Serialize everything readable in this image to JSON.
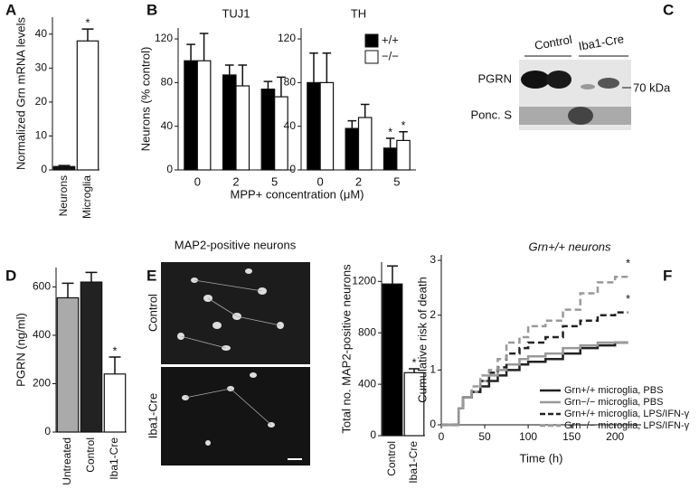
{
  "chart_data": [
    {
      "type": "bar",
      "label": "A",
      "ylabel": "Normalized Grn mRNA levels",
      "categories": [
        "Neurons",
        "Microglia"
      ],
      "values": [
        1,
        38
      ],
      "errors": [
        0.3,
        3.5
      ],
      "colors": [
        "#111111",
        "#ffffff"
      ],
      "significance": [
        null,
        "*"
      ],
      "ylim": [
        0,
        45
      ],
      "yticks": [
        0,
        10,
        20,
        30,
        40
      ]
    },
    {
      "type": "grouped-bar",
      "label": "B",
      "ylabel": "Neurons (% control)",
      "xlabel": "MPP+ concentration (μM)",
      "categories": [
        "0",
        "2",
        "5"
      ],
      "series": [
        {
          "name": "+/+",
          "color": "#000000"
        },
        {
          "name": "−/−",
          "color": "#ffffff"
        }
      ],
      "ylim": [
        0,
        130
      ],
      "yticks": [
        0,
        40,
        80,
        120
      ],
      "panels": [
        {
          "title": "TUJ1",
          "values": [
            [
              100,
              87,
              74
            ],
            [
              100,
              77,
              67
            ]
          ],
          "errors": [
            [
              15,
              9,
              7
            ],
            [
              25,
              19,
              18
            ]
          ]
        },
        {
          "title": "TH",
          "values": [
            [
              80,
              38,
              20
            ],
            [
              80,
              48,
              27
            ]
          ],
          "errors": [
            [
              27,
              7,
              9
            ],
            [
              27,
              12,
              8
            ]
          ],
          "significance": [
            [
              null,
              null,
              "*"
            ],
            [
              null,
              null,
              "*"
            ]
          ]
        }
      ]
    },
    {
      "type": "bar",
      "label": "D",
      "ylabel": "PGRN (ng/ml)",
      "categories": [
        "Untreated",
        "Control",
        "Iba1-Cre"
      ],
      "values": [
        555,
        620,
        240
      ],
      "errors": [
        60,
        40,
        70
      ],
      "colors": [
        "#aaaaaa",
        "#222222",
        "#ffffff"
      ],
      "significance": [
        null,
        null,
        "*"
      ],
      "ylim": [
        0,
        680
      ],
      "yticks": [
        0,
        200,
        400,
        600
      ]
    },
    {
      "type": "bar",
      "label": "E",
      "ylabel": "Total no. MAP2-positive neurons",
      "categories": [
        "Control",
        "Iba1-Cre"
      ],
      "values": [
        1180,
        490
      ],
      "errors": [
        140,
        30
      ],
      "colors": [
        "#000000",
        "#ffffff"
      ],
      "significance": [
        null,
        "*"
      ],
      "ylim": [
        0,
        1350
      ],
      "yticks": [
        0,
        400,
        800,
        1200
      ]
    },
    {
      "type": "step",
      "label": "F",
      "title": "Grn+/+ neurons",
      "ylabel": "Cumulative risk of death",
      "xlabel": "Time (h)",
      "x": [
        0,
        20,
        25,
        35,
        45,
        55,
        65,
        75,
        90,
        100,
        120,
        140,
        160,
        180,
        200,
        215
      ],
      "series": [
        {
          "name": "Grn+/+ microglia, PBS",
          "color": "#222222",
          "dash": false,
          "values": [
            0,
            0.3,
            0.5,
            0.6,
            0.7,
            0.8,
            0.9,
            1.0,
            1.1,
            1.15,
            1.2,
            1.3,
            1.4,
            1.45,
            1.5,
            1.5
          ]
        },
        {
          "name": "Grn−/− microglia, PBS",
          "color": "#999999",
          "dash": false,
          "values": [
            0,
            0.3,
            0.5,
            0.6,
            0.8,
            0.9,
            1.0,
            1.1,
            1.2,
            1.25,
            1.3,
            1.4,
            1.45,
            1.5,
            1.5,
            1.5
          ]
        },
        {
          "name": "Grn+/+ microglia, LPS/IFN-γ",
          "color": "#222222",
          "dash": true,
          "significance": "*",
          "values": [
            0,
            0.3,
            0.5,
            0.6,
            0.8,
            0.95,
            1.05,
            1.3,
            1.4,
            1.5,
            1.6,
            1.8,
            1.9,
            2.0,
            2.05,
            2.05
          ]
        },
        {
          "name": "Grn−/− microglia, LPS/IFN-γ",
          "color": "#999999",
          "dash": true,
          "significance": "*",
          "values": [
            0,
            0.3,
            0.5,
            0.7,
            0.9,
            1.0,
            1.2,
            1.5,
            1.6,
            1.8,
            1.9,
            2.1,
            2.4,
            2.6,
            2.7,
            2.7
          ]
        }
      ],
      "xlim": [
        0,
        230
      ],
      "xticks": [
        0,
        50,
        100,
        150,
        200
      ],
      "ylim": [
        0,
        3.1
      ],
      "yticks": [
        0,
        1,
        2,
        3
      ]
    }
  ],
  "blot": {
    "label": "C",
    "groups": [
      "Control",
      "Iba1-Cre"
    ],
    "rows": [
      "PGRN",
      "Ponc. S"
    ],
    "marker": "70 kDa"
  },
  "micrograph": {
    "title": "MAP2-positive neurons",
    "rows": [
      "Control",
      "Iba1-Cre"
    ]
  }
}
